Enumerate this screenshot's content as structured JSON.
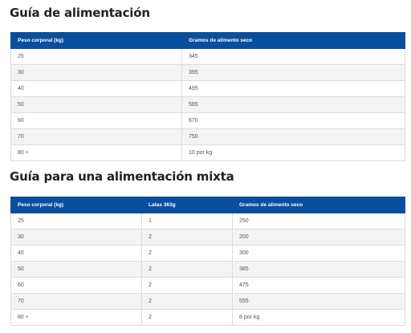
{
  "guide1": {
    "title": "Guía de alimentación",
    "headers": [
      "Peso corporal (kg)",
      "Gramos de alimento seco"
    ],
    "rows": [
      [
        "25",
        "345"
      ],
      [
        "30",
        "395"
      ],
      [
        "40",
        "495"
      ],
      [
        "50",
        "585"
      ],
      [
        "60",
        "670"
      ],
      [
        "70",
        "750"
      ],
      [
        "80 +",
        "10 por kg"
      ]
    ]
  },
  "guide2": {
    "title": "Guía para una alimentación mixta",
    "headers": [
      "Peso corporal (kg)",
      "Latas 363g",
      "Gramos de alimento seco"
    ],
    "rows": [
      [
        "25",
        "1",
        "250"
      ],
      [
        "30",
        "2",
        "200"
      ],
      [
        "40",
        "2",
        "300"
      ],
      [
        "50",
        "2",
        "385"
      ],
      [
        "60",
        "2",
        "475"
      ],
      [
        "70",
        "2",
        "555"
      ],
      [
        "80 +",
        "2",
        "8 por kg"
      ]
    ]
  }
}
